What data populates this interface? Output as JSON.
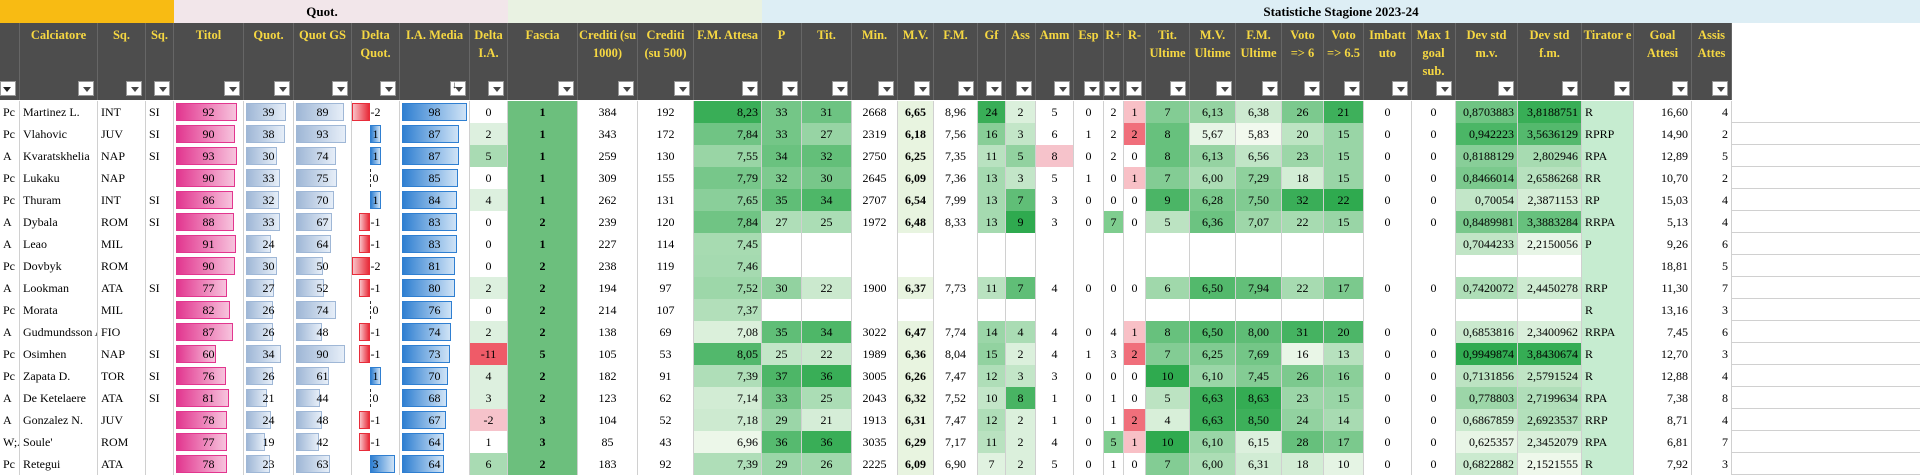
{
  "groups": [
    {
      "label": "Quot.",
      "bg": "#f2e6ea"
    },
    {
      "label": "Statistiche Stagione 2023-24",
      "bg": "#ddeef5"
    }
  ],
  "columns": [
    {
      "key": "role",
      "label": "",
      "bg": "#ffffff"
    },
    {
      "key": "player",
      "label": "Calciatore",
      "bg": "#ffffff"
    },
    {
      "key": "team",
      "label": "Sq.",
      "bg": "#ffffff"
    },
    {
      "key": "sq",
      "label": "Sq.",
      "bg": "#ffffff"
    },
    {
      "key": "tit",
      "label": "Titol",
      "bg": "#ffffff"
    },
    {
      "key": "quot",
      "label": "Quot.",
      "bg": "#ffffff"
    },
    {
      "key": "quotgs",
      "label": "Quot GS",
      "bg": "#ffffff"
    },
    {
      "key": "delta",
      "label": "Delta Quot.",
      "bg": "#ffffff"
    },
    {
      "key": "iam",
      "label": "I.A. Media",
      "bg": "#ffffff"
    },
    {
      "key": "dia",
      "label": "Delta I.A.",
      "bg": "#ffffff"
    },
    {
      "key": "fascia",
      "label": "Fascia",
      "bg": "#6cbf7d"
    },
    {
      "key": "cr1000",
      "label": "Crediti (su 1000)",
      "bg": "#ffffff"
    },
    {
      "key": "cr500",
      "label": "Crediti (su 500)",
      "bg": "#ffffff"
    },
    {
      "key": "fma",
      "label": "F.M. Attesa",
      "bg": "#77c487"
    },
    {
      "key": "p",
      "label": "P",
      "bg": "#ffffff"
    },
    {
      "key": "tits",
      "label": "Tit.",
      "bg": "#ffffff"
    },
    {
      "key": "min",
      "label": "Min.",
      "bg": "#ffffff"
    },
    {
      "key": "mv",
      "label": "M.V.",
      "bg": "#ffffff"
    },
    {
      "key": "fm",
      "label": "F.M.",
      "bg": "#ffffff"
    },
    {
      "key": "gf",
      "label": "Gf",
      "bg": "#ffffff"
    },
    {
      "key": "ass",
      "label": "Ass",
      "bg": "#ffffff"
    },
    {
      "key": "amm",
      "label": "Amm",
      "bg": "#ffffff"
    },
    {
      "key": "esp",
      "label": "Esp",
      "bg": "#ffffff"
    },
    {
      "key": "rp",
      "label": "R+",
      "bg": "#ffffff"
    },
    {
      "key": "rm",
      "label": "R-",
      "bg": "#ffffff"
    },
    {
      "key": "titu",
      "label": "Tit. Ultime",
      "bg": "#ffffff"
    },
    {
      "key": "mvu",
      "label": "M.V. Ultime",
      "bg": "#ffffff"
    },
    {
      "key": "fmu",
      "label": "F.M. Ultime",
      "bg": "#ffffff"
    },
    {
      "key": "v6",
      "label": "Voto => 6",
      "bg": "#ffffff"
    },
    {
      "key": "v65",
      "label": "Voto => 6.5",
      "bg": "#ffffff"
    },
    {
      "key": "imb",
      "label": "Imbatt uto",
      "bg": "#ffffff"
    },
    {
      "key": "max1",
      "label": "Max 1 goal sub.",
      "bg": "#ffffff"
    },
    {
      "key": "dsmv",
      "label": "Dev std m.v.",
      "bg": "#ffffff"
    },
    {
      "key": "dsfm",
      "label": "Dev std f.m.",
      "bg": "#ffffff"
    },
    {
      "key": "tir",
      "label": "Tirator e",
      "bg": "#ffffff"
    },
    {
      "key": "ga",
      "label": "Goal Attesi",
      "bg": "#ffffff"
    },
    {
      "key": "assa",
      "label": "Assis Attes",
      "bg": "#ffffff"
    }
  ],
  "rows": [
    {
      "role": "Pc",
      "player": "Martinez L.",
      "team": "INT",
      "sq": "SI",
      "tit": "92",
      "quot": "39",
      "quotgs": "89",
      "delta": "-2",
      "iam": "98",
      "dia": "0",
      "fascia": "1",
      "cr1000": "384",
      "cr500": "192",
      "fma": "8,23",
      "p": "33",
      "tits": "31",
      "min": "2668",
      "mv": "6,65",
      "fm": "8,96",
      "gf": "24",
      "ass": "2",
      "amm": "5",
      "esp": "0",
      "rp": "2",
      "rm": "1",
      "titu": "7",
      "mvu": "6,13",
      "fmu": "6,38",
      "v6": "26",
      "v65": "21",
      "imb": "0",
      "max1": "0",
      "dsmv": "0,8703883",
      "dsfm": "3,8188751",
      "tir": "R",
      "ga": "16,60",
      "assa": "4"
    },
    {
      "role": "Pc",
      "player": "Vlahovic",
      "team": "JUV",
      "sq": "SI",
      "tit": "90",
      "quot": "38",
      "quotgs": "93",
      "delta": "1",
      "iam": "87",
      "dia": "2",
      "fascia": "1",
      "cr1000": "343",
      "cr500": "172",
      "fma": "7,84",
      "p": "33",
      "tits": "27",
      "min": "2319",
      "mv": "6,18",
      "fm": "7,56",
      "gf": "16",
      "ass": "3",
      "amm": "6",
      "esp": "1",
      "rp": "2",
      "rm": "2",
      "titu": "8",
      "mvu": "5,67",
      "fmu": "5,83",
      "v6": "20",
      "v65": "15",
      "imb": "0",
      "max1": "0",
      "dsmv": "0,942223",
      "dsfm": "3,5636129",
      "tir": "RPRP",
      "ga": "14,90",
      "assa": "2"
    },
    {
      "role": "A",
      "player": "Kvaratskhelia",
      "team": "NAP",
      "sq": "SI",
      "tit": "93",
      "quot": "30",
      "quotgs": "74",
      "delta": "1",
      "iam": "87",
      "dia": "5",
      "fascia": "1",
      "cr1000": "259",
      "cr500": "130",
      "fma": "7,55",
      "p": "34",
      "tits": "32",
      "min": "2750",
      "mv": "6,25",
      "fm": "7,35",
      "gf": "11",
      "ass": "5",
      "amm": "8",
      "esp": "0",
      "rp": "2",
      "rm": "0",
      "titu": "8",
      "mvu": "6,13",
      "fmu": "6,56",
      "v6": "23",
      "v65": "15",
      "imb": "0",
      "max1": "0",
      "dsmv": "0,8188129",
      "dsfm": "2,802946",
      "tir": "RPA",
      "ga": "12,89",
      "assa": "5"
    },
    {
      "role": "Pc",
      "player": "Lukaku",
      "team": "NAP",
      "sq": "",
      "tit": "90",
      "quot": "33",
      "quotgs": "75",
      "delta": "0",
      "iam": "85",
      "dia": "0",
      "fascia": "1",
      "cr1000": "309",
      "cr500": "155",
      "fma": "7,79",
      "p": "32",
      "tits": "30",
      "min": "2645",
      "mv": "6,09",
      "fm": "7,36",
      "gf": "13",
      "ass": "3",
      "amm": "5",
      "esp": "1",
      "rp": "0",
      "rm": "1",
      "titu": "7",
      "mvu": "6,00",
      "fmu": "7,29",
      "v6": "18",
      "v65": "15",
      "imb": "0",
      "max1": "0",
      "dsmv": "0,8466014",
      "dsfm": "2,6586268",
      "tir": "RR",
      "ga": "10,70",
      "assa": "2"
    },
    {
      "role": "Pc",
      "player": "Thuram",
      "team": "INT",
      "sq": "SI",
      "tit": "86",
      "quot": "32",
      "quotgs": "70",
      "delta": "1",
      "iam": "84",
      "dia": "4",
      "fascia": "1",
      "cr1000": "262",
      "cr500": "131",
      "fma": "7,65",
      "p": "35",
      "tits": "34",
      "min": "2707",
      "mv": "6,54",
      "fm": "7,99",
      "gf": "13",
      "ass": "7",
      "amm": "3",
      "esp": "0",
      "rp": "0",
      "rm": "0",
      "titu": "9",
      "mvu": "6,28",
      "fmu": "7,50",
      "v6": "32",
      "v65": "22",
      "imb": "0",
      "max1": "0",
      "dsmv": "0,70054",
      "dsfm": "2,3871153",
      "tir": "RP",
      "ga": "15,03",
      "assa": "4"
    },
    {
      "role": "A",
      "player": "Dybala",
      "team": "ROM",
      "sq": "SI",
      "tit": "88",
      "quot": "33",
      "quotgs": "67",
      "delta": "-1",
      "iam": "83",
      "dia": "0",
      "fascia": "2",
      "cr1000": "239",
      "cr500": "120",
      "fma": "7,84",
      "p": "27",
      "tits": "25",
      "min": "1972",
      "mv": "6,48",
      "fm": "8,33",
      "gf": "13",
      "ass": "9",
      "amm": "3",
      "esp": "0",
      "rp": "7",
      "rm": "0",
      "titu": "5",
      "mvu": "6,36",
      "fmu": "7,07",
      "v6": "22",
      "v65": "15",
      "imb": "0",
      "max1": "0",
      "dsmv": "0,8489981",
      "dsfm": "3,3883284",
      "tir": "RRPA",
      "ga": "5,13",
      "assa": "4"
    },
    {
      "role": "A",
      "player": "Leao",
      "team": "MIL",
      "sq": "",
      "tit": "91",
      "quot": "24",
      "quotgs": "64",
      "delta": "-1",
      "iam": "83",
      "dia": "0",
      "fascia": "1",
      "cr1000": "227",
      "cr500": "114",
      "fma": "7,45",
      "p": "",
      "tits": "",
      "min": "",
      "mv": "",
      "fm": "",
      "gf": "",
      "ass": "",
      "amm": "",
      "esp": "",
      "rp": "",
      "rm": "",
      "titu": "",
      "mvu": "",
      "fmu": "",
      "v6": "",
      "v65": "",
      "imb": "",
      "max1": "",
      "dsmv": "0,7044233",
      "dsfm": "2,2150056",
      "tir": "P",
      "ga": "9,26",
      "assa": "6"
    },
    {
      "role": "Pc",
      "player": "Dovbyk",
      "team": "ROM",
      "sq": "",
      "tit": "90",
      "quot": "30",
      "quotgs": "50",
      "delta": "-2",
      "iam": "81",
      "dia": "0",
      "fascia": "2",
      "cr1000": "238",
      "cr500": "119",
      "fma": "7,46",
      "p": "",
      "tits": "",
      "min": "",
      "mv": "",
      "fm": "",
      "gf": "",
      "ass": "",
      "amm": "",
      "esp": "",
      "rp": "",
      "rm": "",
      "titu": "",
      "mvu": "",
      "fmu": "",
      "v6": "",
      "v65": "",
      "imb": "",
      "max1": "",
      "dsmv": "",
      "dsfm": "",
      "tir": "",
      "ga": "18,81",
      "assa": "5"
    },
    {
      "role": "A",
      "player": "Lookman",
      "team": "ATA",
      "sq": "SI",
      "tit": "77",
      "quot": "27",
      "quotgs": "52",
      "delta": "-1",
      "iam": "80",
      "dia": "2",
      "fascia": "2",
      "cr1000": "194",
      "cr500": "97",
      "fma": "7,52",
      "p": "30",
      "tits": "22",
      "min": "1900",
      "mv": "6,37",
      "fm": "7,73",
      "gf": "11",
      "ass": "7",
      "amm": "4",
      "esp": "0",
      "rp": "0",
      "rm": "0",
      "titu": "6",
      "mvu": "6,50",
      "fmu": "7,94",
      "v6": "22",
      "v65": "17",
      "imb": "0",
      "max1": "0",
      "dsmv": "0,7420072",
      "dsfm": "2,4450278",
      "tir": "RRP",
      "ga": "11,30",
      "assa": "7"
    },
    {
      "role": "Pc",
      "player": "Morata",
      "team": "MIL",
      "sq": "",
      "tit": "82",
      "quot": "26",
      "quotgs": "74",
      "delta": "0",
      "iam": "76",
      "dia": "0",
      "fascia": "2",
      "cr1000": "214",
      "cr500": "107",
      "fma": "7,37",
      "p": "",
      "tits": "",
      "min": "",
      "mv": "",
      "fm": "",
      "gf": "",
      "ass": "",
      "amm": "",
      "esp": "",
      "rp": "",
      "rm": "",
      "titu": "",
      "mvu": "",
      "fmu": "",
      "v6": "",
      "v65": "",
      "imb": "",
      "max1": "",
      "dsmv": "",
      "dsfm": "",
      "tir": "R",
      "ga": "13,16",
      "assa": "3"
    },
    {
      "role": "A",
      "player": "Gudmundsson A.",
      "team": "FIO",
      "sq": "",
      "tit": "87",
      "quot": "26",
      "quotgs": "48",
      "delta": "-1",
      "iam": "74",
      "dia": "2",
      "fascia": "2",
      "cr1000": "138",
      "cr500": "69",
      "fma": "7,08",
      "p": "35",
      "tits": "34",
      "min": "3022",
      "mv": "6,47",
      "fm": "7,74",
      "gf": "14",
      "ass": "4",
      "amm": "4",
      "esp": "0",
      "rp": "4",
      "rm": "1",
      "titu": "8",
      "mvu": "6,50",
      "fmu": "8,00",
      "v6": "31",
      "v65": "20",
      "imb": "0",
      "max1": "0",
      "dsmv": "0,6853816",
      "dsfm": "2,3400962",
      "tir": "RRPA",
      "ga": "7,45",
      "assa": "6"
    },
    {
      "role": "Pc",
      "player": "Osimhen",
      "team": "NAP",
      "sq": "SI",
      "tit": "60",
      "quot": "34",
      "quotgs": "90",
      "delta": "-1",
      "iam": "73",
      "dia": "-11",
      "fascia": "5",
      "cr1000": "105",
      "cr500": "53",
      "fma": "8,05",
      "p": "25",
      "tits": "22",
      "min": "1989",
      "mv": "6,36",
      "fm": "8,04",
      "gf": "15",
      "ass": "2",
      "amm": "4",
      "esp": "1",
      "rp": "3",
      "rm": "2",
      "titu": "7",
      "mvu": "6,25",
      "fmu": "7,69",
      "v6": "16",
      "v65": "13",
      "imb": "0",
      "max1": "0",
      "dsmv": "0,9949874",
      "dsfm": "3,8430674",
      "tir": "R",
      "ga": "12,70",
      "assa": "3"
    },
    {
      "role": "Pc",
      "player": "Zapata D.",
      "team": "TOR",
      "sq": "SI",
      "tit": "76",
      "quot": "26",
      "quotgs": "61",
      "delta": "1",
      "iam": "70",
      "dia": "4",
      "fascia": "2",
      "cr1000": "182",
      "cr500": "91",
      "fma": "7,39",
      "p": "37",
      "tits": "36",
      "min": "3005",
      "mv": "6,26",
      "fm": "7,47",
      "gf": "12",
      "ass": "3",
      "amm": "3",
      "esp": "0",
      "rp": "0",
      "rm": "0",
      "titu": "10",
      "mvu": "6,10",
      "fmu": "7,45",
      "v6": "26",
      "v65": "16",
      "imb": "0",
      "max1": "0",
      "dsmv": "0,7131856",
      "dsfm": "2,5791524",
      "tir": "R",
      "ga": "12,88",
      "assa": "4"
    },
    {
      "role": "A",
      "player": "De Ketelaere",
      "team": "ATA",
      "sq": "SI",
      "tit": "81",
      "quot": "21",
      "quotgs": "44",
      "delta": "0",
      "iam": "68",
      "dia": "3",
      "fascia": "2",
      "cr1000": "123",
      "cr500": "62",
      "fma": "7,14",
      "p": "33",
      "tits": "25",
      "min": "2043",
      "mv": "6,32",
      "fm": "7,52",
      "gf": "10",
      "ass": "8",
      "amm": "1",
      "esp": "0",
      "rp": "1",
      "rm": "0",
      "titu": "5",
      "mvu": "6,63",
      "fmu": "8,63",
      "v6": "23",
      "v65": "15",
      "imb": "0",
      "max1": "0",
      "dsmv": "0,778803",
      "dsfm": "2,7199634",
      "tir": "RPA",
      "ga": "7,38",
      "assa": "8"
    },
    {
      "role": "A",
      "player": "Gonzalez N.",
      "team": "JUV",
      "sq": "",
      "tit": "78",
      "quot": "24",
      "quotgs": "48",
      "delta": "-1",
      "iam": "67",
      "dia": "-2",
      "fascia": "3",
      "cr1000": "104",
      "cr500": "52",
      "fma": "7,18",
      "p": "29",
      "tits": "21",
      "min": "1913",
      "mv": "6,31",
      "fm": "7,47",
      "gf": "12",
      "ass": "2",
      "amm": "1",
      "esp": "0",
      "rp": "1",
      "rm": "2",
      "titu": "4",
      "mvu": "6,63",
      "fmu": "8,50",
      "v6": "24",
      "v65": "14",
      "imb": "0",
      "max1": "0",
      "dsmv": "0,6867859",
      "dsfm": "2,6923537",
      "tir": "RRP",
      "ga": "8,71",
      "assa": "4"
    },
    {
      "role": "W;A",
      "player": "Soule'",
      "team": "ROM",
      "sq": "",
      "tit": "77",
      "quot": "19",
      "quotgs": "42",
      "delta": "-1",
      "iam": "64",
      "dia": "1",
      "fascia": "3",
      "cr1000": "85",
      "cr500": "43",
      "fma": "6,96",
      "p": "36",
      "tits": "36",
      "min": "3035",
      "mv": "6,29",
      "fm": "7,17",
      "gf": "11",
      "ass": "2",
      "amm": "4",
      "esp": "0",
      "rp": "5",
      "rm": "1",
      "titu": "10",
      "mvu": "6,10",
      "fmu": "6,15",
      "v6": "28",
      "v65": "17",
      "imb": "0",
      "max1": "0",
      "dsmv": "0,625357",
      "dsfm": "2,3452079",
      "tir": "RPA",
      "ga": "6,81",
      "assa": "7"
    },
    {
      "role": "Pc",
      "player": "Retegui",
      "team": "ATA",
      "sq": "",
      "tit": "78",
      "quot": "23",
      "quotgs": "63",
      "delta": "3",
      "iam": "64",
      "dia": "6",
      "fascia": "2",
      "cr1000": "183",
      "cr500": "92",
      "fma": "7,39",
      "p": "29",
      "tits": "26",
      "min": "2225",
      "mv": "6,09",
      "fm": "6,90",
      "gf": "7",
      "ass": "2",
      "amm": "5",
      "esp": "0",
      "rp": "1",
      "rm": "0",
      "titu": "7",
      "mvu": "6,00",
      "fmu": "6,31",
      "v6": "18",
      "v65": "10",
      "imb": "0",
      "max1": "0",
      "dsmv": "0,6822882",
      "dsfm": "2,1521555",
      "tir": "R",
      "ga": "7,92",
      "assa": "3"
    }
  ]
}
